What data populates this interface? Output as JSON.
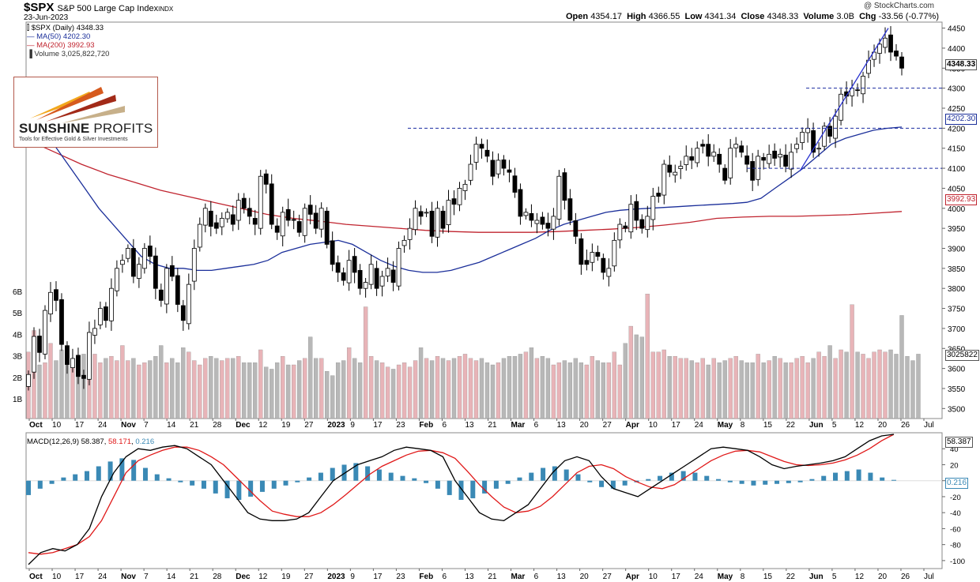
{
  "header": {
    "symbol": "$SPX",
    "name": "S&P 500 Large Cap Index",
    "exchange": "INDX",
    "date": "23-Jun-2023",
    "source": "@ StockCharts.com",
    "open_label": "Open",
    "open": "4354.17",
    "high_label": "High",
    "high": "4366.55",
    "low_label": "Low",
    "low": "4341.34",
    "close_label": "Close",
    "close": "4348.33",
    "volume_label": "Volume",
    "volume": "3.0B",
    "chg_label": "Chg",
    "chg": "-33.56 (-0.77%)"
  },
  "legend": {
    "price": "$SPX (Daily) 4348.33",
    "ma50": "MA(50) 4202.30",
    "ma200": "MA(200) 3992.93",
    "volume": "Volume 3,025,822,720",
    "macd_label": "MACD(12,26,9)",
    "macd_value": "58.387",
    "signal_value": "58.171",
    "hist_value": "0.216"
  },
  "logo": {
    "name_bold": "SUNSHINE",
    "name_rest": "PROFITS",
    "tagline": "Tools for Effective Gold & Silver Investments"
  },
  "tags": {
    "price": "4348.33",
    "ma50": "4202.30",
    "ma200": "3992.93",
    "volume": "3025822",
    "macd": "58.387",
    "hist": "0.216"
  },
  "colors": {
    "up": "#ffffff",
    "down": "#000000",
    "ma50": "#1b2f9a",
    "ma200": "#c0242f",
    "vol_up": "#e8b4b8",
    "vol_down": "#b8b8b8",
    "macd": "#000000",
    "signal": "#e01818",
    "hist": "#3a89b5",
    "levels": "#1a2aa0"
  },
  "chart_data": {
    "type": "candlestick",
    "price_axis": {
      "min": 3475,
      "max": 4465,
      "ticks": [
        3500,
        3550,
        3600,
        3650,
        3700,
        3750,
        3800,
        3850,
        3900,
        3950,
        4000,
        4050,
        4100,
        4150,
        4200,
        4250,
        4300,
        4350,
        4400,
        4450
      ]
    },
    "volume_axis": {
      "ticks": [
        "1B",
        "2B",
        "3B",
        "4B",
        "5B",
        "6B"
      ]
    },
    "macd_axis": {
      "min": -110,
      "max": 60,
      "ticks": [
        -100,
        -80,
        -60,
        -40,
        -20,
        0,
        20,
        40
      ]
    },
    "x_labels": [
      "Oct",
      "10",
      "17",
      "24",
      "Nov",
      "7",
      "14",
      "21",
      "28",
      "Dec",
      "12",
      "19",
      "27",
      "2023",
      "9",
      "17",
      "23",
      "Feb",
      "6",
      "13",
      "21",
      "Mar",
      "6",
      "13",
      "20",
      "27",
      "Apr",
      "10",
      "17",
      "24",
      "May",
      "8",
      "15",
      "22",
      "Jun",
      "5",
      "12",
      "20",
      "26",
      "Jul"
    ],
    "x_bold": [
      "Oct",
      "Nov",
      "Dec",
      "2023",
      "Feb",
      "Mar",
      "Apr",
      "May",
      "Jun"
    ],
    "horizontal_levels": [
      4300,
      4200,
      4100
    ],
    "closes": [
      3585,
      3680,
      3640,
      3745,
      3790,
      3770,
      3660,
      3610,
      3625,
      3580,
      3575,
      3690,
      3700,
      3750,
      3720,
      3800,
      3850,
      3870,
      3900,
      3830,
      3860,
      3900,
      3880,
      3800,
      3770,
      3850,
      3830,
      3760,
      3720,
      3810,
      3900,
      3960,
      4000,
      3955,
      3950,
      3975,
      3990,
      3960,
      4020,
      4000,
      3980,
      3960,
      4080,
      4060,
      3960,
      3940,
      3990,
      3970,
      3970,
      3940,
      4000,
      3985,
      3950,
      4000,
      3910,
      3860,
      3840,
      3820,
      3870,
      3840,
      3800,
      3815,
      3860,
      3800,
      3830,
      3850,
      3815,
      3900,
      3920,
      3950,
      4000,
      3980,
      3990,
      3930,
      4000,
      3950,
      4020,
      4010,
      4050,
      4060,
      4110,
      4160,
      4150,
      4130,
      4080,
      4120,
      4100,
      4090,
      4040,
      3980,
      3990,
      3970,
      3970,
      3960,
      3950,
      3980,
      4080,
      4020,
      3970,
      3930,
      3860,
      3860,
      3890,
      3880,
      3840,
      3850,
      3920,
      3960,
      3950,
      4010,
      3970,
      3950,
      3980,
      4030,
      4030,
      4110,
      4090,
      4090,
      4105,
      4130,
      4120,
      4150,
      4155,
      4130,
      4140,
      4110,
      4070,
      4150,
      4160,
      4140,
      4110,
      4070,
      4130,
      4120,
      4135,
      4125,
      4135,
      4105,
      4140,
      4160,
      4190,
      4200,
      4140,
      4150,
      4205,
      4180,
      4230,
      4285,
      4280,
      4300,
      4295,
      4330,
      4370,
      4390,
      4410,
      4425,
      4390,
      4380,
      4350
    ],
    "volumes_b": [
      3.1,
      4.1,
      2.5,
      2.6,
      3.5,
      2.7,
      3.2,
      2.8,
      2.5,
      2.7,
      3.0,
      2.6,
      3.0,
      2.6,
      2.8,
      2.9,
      2.7,
      3.4,
      2.7,
      2.8,
      2.5,
      2.6,
      2.7,
      2.9,
      3.4,
      2.6,
      2.8,
      2.6,
      3.3,
      3.1,
      2.7,
      2.5,
      2.8,
      2.9,
      2.8,
      2.7,
      2.8,
      2.8,
      2.9,
      2.6,
      2.6,
      2.6,
      3.2,
      2.4,
      2.3,
      2.6,
      2.9,
      2.5,
      2.5,
      2.7,
      2.8,
      3.8,
      2.8,
      2.8,
      2.2,
      2.0,
      2.6,
      2.7,
      3.3,
      2.8,
      2.6,
      5.2,
      2.9,
      2.7,
      2.6,
      2.4,
      2.3,
      2.5,
      2.6,
      2.4,
      2.7,
      3.3,
      2.8,
      2.7,
      2.9,
      2.8,
      2.7,
      2.8,
      2.9,
      3.0,
      2.8,
      2.7,
      2.8,
      2.6,
      2.5,
      2.6,
      2.8,
      2.9,
      2.9,
      3.0,
      3.1,
      3.3,
      2.8,
      2.9,
      2.8,
      2.5,
      2.6,
      2.7,
      2.6,
      2.8,
      2.6,
      2.5,
      2.9,
      2.7,
      2.6,
      2.6,
      3.1,
      2.5,
      3.5,
      4.3,
      3.9,
      3.8,
      5.8,
      3.1,
      3.1,
      3.2,
      2.9,
      2.9,
      2.8,
      2.8,
      2.7,
      2.6,
      2.8,
      2.5,
      2.8,
      2.6,
      2.7,
      2.8,
      2.9,
      2.7,
      2.6,
      2.6,
      3.0,
      2.6,
      2.7,
      2.9,
      2.8,
      2.6,
      2.6,
      2.8,
      2.9,
      2.6,
      2.8,
      3.1,
      2.9,
      3.4,
      2.8,
      3.2,
      3.1,
      5.3,
      3.1,
      3.0,
      2.8,
      3.1,
      3.2,
      3.1,
      3.2,
      3.0,
      4.8,
      2.9,
      2.7,
      3.0
    ],
    "ma50": [
      4230,
      4200,
      4150,
      4100,
      4050,
      4000,
      3960,
      3920,
      3880,
      3860,
      3850,
      3850,
      3845,
      3845,
      3850,
      3855,
      3860,
      3870,
      3890,
      3900,
      3910,
      3915,
      3920,
      3910,
      3890,
      3870,
      3855,
      3845,
      3840,
      3840,
      3845,
      3855,
      3865,
      3880,
      3895,
      3910,
      3925,
      3945,
      3960,
      3970,
      3980,
      3990,
      3995,
      3998,
      4000,
      4002,
      4004,
      4006,
      4008,
      4010,
      4012,
      4015,
      4025,
      4050,
      4075,
      4100,
      4130,
      4160,
      4175,
      4185,
      4195,
      4200,
      4203
    ],
    "ma200": [
      4170,
      4140,
      4110,
      4085,
      4065,
      4045,
      4030,
      4015,
      4000,
      3985,
      3975,
      3968,
      3960,
      3955,
      3950,
      3945,
      3942,
      3940,
      3940,
      3940,
      3942,
      3945,
      3948,
      3952,
      3958,
      3965,
      3975,
      3978,
      3980,
      3980,
      3982,
      3984,
      3988,
      3992
    ],
    "macd": [
      -105,
      -90,
      -85,
      -88,
      -80,
      -60,
      -20,
      10,
      30,
      40,
      38,
      42,
      44,
      40,
      30,
      20,
      0,
      -20,
      -40,
      -48,
      -50,
      -50,
      -48,
      -40,
      -20,
      0,
      10,
      20,
      25,
      30,
      38,
      42,
      40,
      38,
      30,
      0,
      -20,
      -40,
      -48,
      -50,
      -40,
      -30,
      -10,
      10,
      25,
      30,
      25,
      5,
      -10,
      -15,
      -20,
      -10,
      0,
      10,
      20,
      30,
      40,
      42,
      40,
      38,
      30,
      20,
      15,
      18,
      20,
      22,
      25,
      30,
      40,
      50,
      56,
      58
    ],
    "signal": [
      -90,
      -92,
      -90,
      -85,
      -80,
      -70,
      -50,
      -20,
      10,
      25,
      32,
      38,
      42,
      42,
      38,
      30,
      20,
      5,
      -10,
      -25,
      -38,
      -42,
      -45,
      -45,
      -40,
      -30,
      -18,
      -5,
      8,
      18,
      25,
      32,
      37,
      38,
      35,
      28,
      12,
      -5,
      -20,
      -33,
      -40,
      -38,
      -32,
      -20,
      -5,
      10,
      18,
      20,
      15,
      5,
      -2,
      -8,
      -10,
      -5,
      5,
      15,
      25,
      32,
      37,
      38,
      36,
      30,
      24,
      20,
      19,
      20,
      22,
      26,
      32,
      40,
      50,
      58
    ],
    "hist": [
      -18,
      -10,
      -4,
      4,
      8,
      12,
      18,
      24,
      28,
      26,
      16,
      8,
      3,
      -2,
      -6,
      -10,
      -16,
      -22,
      -24,
      -20,
      -14,
      -10,
      -6,
      -2,
      4,
      10,
      16,
      20,
      22,
      18,
      14,
      10,
      6,
      3,
      -3,
      -10,
      -18,
      -24,
      -22,
      -16,
      -10,
      -4,
      4,
      10,
      16,
      18,
      14,
      8,
      -2,
      -8,
      -10,
      -6,
      -2,
      2,
      6,
      10,
      12,
      10,
      6,
      2,
      -2,
      -4,
      -6,
      -5,
      -4,
      -3,
      -2,
      2,
      6,
      10,
      12,
      14,
      10,
      4,
      1
    ]
  }
}
